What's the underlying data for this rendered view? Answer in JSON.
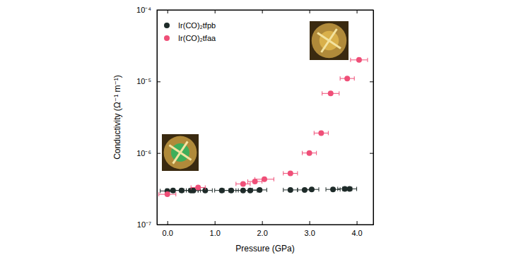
{
  "chart_data": {
    "type": "scatter",
    "xlabel": "Pressure (GPa)",
    "ylabel": "Conductivity (Ω⁻¹ m⁻¹)",
    "log": "y",
    "legend": "upper left",
    "xlim": [
      -0.22,
      4.35
    ],
    "ylim": [
      1e-07,
      0.0001
    ],
    "xticks": [
      {
        "value": 0,
        "label": "0.0"
      },
      {
        "value": 1,
        "label": "1.0"
      },
      {
        "value": 2,
        "label": "2.0"
      },
      {
        "value": 3,
        "label": "3.0"
      },
      {
        "value": 4,
        "label": "4.0"
      }
    ],
    "yticks": [
      {
        "value": 1e-07,
        "label": "10⁻⁷"
      },
      {
        "value": 1e-06,
        "label": "10⁻⁶"
      },
      {
        "value": 1e-05,
        "label": "10⁻⁵"
      },
      {
        "value": 0.0001,
        "label": "10⁻⁴"
      }
    ],
    "series": [
      {
        "name": "Ir(CO)₂tfpb",
        "color": "#1e2b29",
        "marker": "circle",
        "x": [
          0.0,
          0.12,
          0.3,
          0.5,
          0.55,
          0.8,
          1.15,
          1.35,
          1.6,
          1.75,
          1.95,
          2.6,
          2.9,
          3.05,
          3.5,
          3.75,
          3.85
        ],
        "values": [
          2.95e-07,
          3e-07,
          3e-07,
          3e-07,
          3e-07,
          3e-07,
          3e-07,
          3e-07,
          3e-07,
          3e-07,
          3.05e-07,
          3.05e-07,
          3.05e-07,
          3.1e-07,
          3.1e-07,
          3.15e-07,
          3.15e-07
        ],
        "xerr": [
          0.15,
          0.15,
          0.15,
          0.15,
          0.15,
          0.15,
          0.15,
          0.15,
          0.15,
          0.15,
          0.15,
          0.15,
          0.15,
          0.15,
          0.15,
          0.15,
          0.15
        ]
      },
      {
        "name": "Ir(CO)₂tfaa",
        "color": "#ef4f78",
        "marker": "circle",
        "x": [
          0.0,
          0.65,
          1.6,
          1.85,
          2.05,
          2.6,
          3.0,
          3.25,
          3.45,
          3.8,
          4.05
        ],
        "values": [
          2.65e-07,
          3.3e-07,
          3.7e-07,
          4e-07,
          4.3e-07,
          5.2e-07,
          1e-06,
          1.9e-06,
          6.8e-06,
          1.1e-05,
          2e-05
        ],
        "xerr": [
          0.18,
          0.15,
          0.15,
          0.15,
          0.2,
          0.15,
          0.15,
          0.15,
          0.18,
          0.15,
          0.18
        ]
      }
    ]
  }
}
